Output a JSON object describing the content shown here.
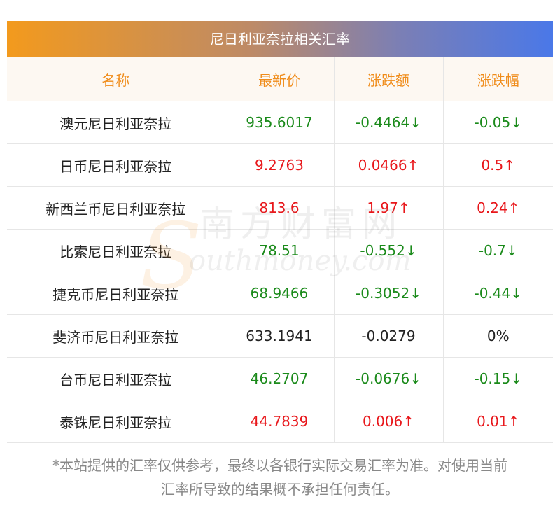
{
  "title": "尼日利亚奈拉相关汇率",
  "headers": [
    "名称",
    "最新价",
    "涨跌额",
    "涨跌幅"
  ],
  "rows": [
    {
      "name": "澳元尼日利亚奈拉",
      "price": "935.6017",
      "change": "-0.4464↓",
      "pct": "-0.05↓",
      "trend": "down"
    },
    {
      "name": "日币尼日利亚奈拉",
      "price": "9.2763",
      "change": "0.0466↑",
      "pct": "0.5↑",
      "trend": "up"
    },
    {
      "name": "新西兰币尼日利亚奈拉",
      "price": "813.6",
      "change": "1.97↑",
      "pct": "0.24↑",
      "trend": "up"
    },
    {
      "name": "比索尼日利亚奈拉",
      "price": "78.51",
      "change": "-0.552↓",
      "pct": "-0.7↓",
      "trend": "down"
    },
    {
      "name": "捷克币尼日利亚奈拉",
      "price": "68.9466",
      "change": "-0.3052↓",
      "pct": "-0.44↓",
      "trend": "down"
    },
    {
      "name": "斐济币尼日利亚奈拉",
      "price": "633.1941",
      "change": "-0.0279",
      "pct": "0%",
      "trend": "flat"
    },
    {
      "name": "台币尼日利亚奈拉",
      "price": "46.2707",
      "change": "-0.0676↓",
      "pct": "-0.15↓",
      "trend": "down"
    },
    {
      "name": "泰铢尼日利亚奈拉",
      "price": "44.7839",
      "change": "0.006↑",
      "pct": "0.01↑",
      "trend": "up"
    }
  ],
  "footnote_line1": "*本站提供的汇率仅供参考，最终以各银行实际交易汇率为准。对使用当前",
  "footnote_line2": "汇率所导致的结果概不承担任何责任。",
  "watermark": {
    "cn": "南方财富网",
    "en": "outhmoney.com",
    "logo": "S"
  },
  "colors": {
    "up": "#e8171b",
    "down": "#1a8a1a",
    "header_text": "#f08c1a",
    "gradient_start": "#f39a1d",
    "gradient_end": "#4a78e8"
  }
}
